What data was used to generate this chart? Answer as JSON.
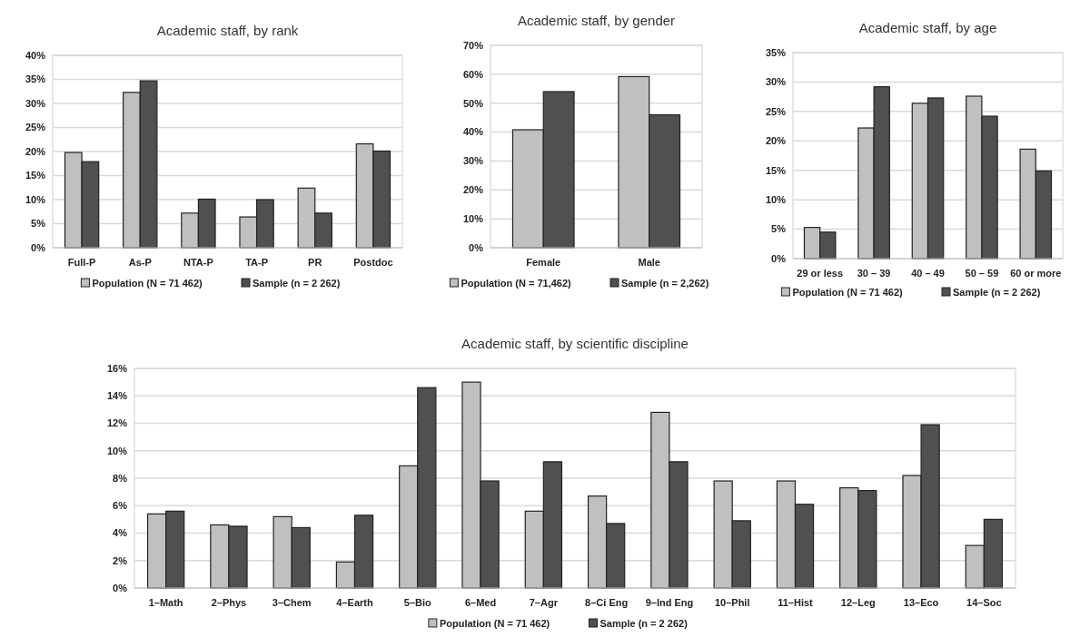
{
  "chart_data": [
    {
      "type": "bar",
      "title": "Academic staff, by rank",
      "categories": [
        "Full-P",
        "As-P",
        "NTA-P",
        "TA-P",
        "PR",
        "Postdoc"
      ],
      "series": [
        {
          "name": "Population (N = 71 462)",
          "color": "#c0c0c0",
          "values": [
            19.8,
            32.3,
            7.2,
            6.4,
            12.4,
            21.6
          ]
        },
        {
          "name": "Sample (n = 2 262)",
          "color": "#505050",
          "values": [
            17.9,
            34.7,
            10.1,
            10.0,
            7.2,
            20.1
          ]
        }
      ],
      "ylim": [
        0,
        40
      ],
      "yticks": [
        {
          "value": 0,
          "label": "0%"
        },
        {
          "value": 5,
          "label": "5%"
        },
        {
          "value": 10,
          "label": "10%"
        },
        {
          "value": 15,
          "label": "15%"
        },
        {
          "value": 20,
          "label": "20%"
        },
        {
          "value": 25,
          "label": "25%"
        },
        {
          "value": 30,
          "label": "30%"
        },
        {
          "value": 35,
          "label": "35%"
        },
        {
          "value": 40,
          "label": "40%"
        }
      ],
      "grid": "y",
      "legend": "bottom"
    },
    {
      "type": "bar",
      "title": "Academic staff, by gender",
      "categories": [
        "Female",
        "Male"
      ],
      "series": [
        {
          "name": "Population (N = 71,462)",
          "color": "#c0c0c0",
          "values": [
            40.8,
            59.2
          ]
        },
        {
          "name": "Sample (n = 2,262)",
          "color": "#505050",
          "values": [
            54.0,
            46.0
          ]
        }
      ],
      "ylim": [
        0,
        70
      ],
      "yticks": [
        {
          "value": 0,
          "label": "0%"
        },
        {
          "value": 10,
          "label": "10%"
        },
        {
          "value": 20,
          "label": "20%"
        },
        {
          "value": 30,
          "label": "30%"
        },
        {
          "value": 40,
          "label": "40%"
        },
        {
          "value": 50,
          "label": "50%"
        },
        {
          "value": 60,
          "label": "60%"
        },
        {
          "value": 70,
          "label": "70%"
        }
      ],
      "grid": "y",
      "legend": "bottom"
    },
    {
      "type": "bar",
      "title": "Academic staff, by age",
      "categories": [
        "29 or less",
        "30 – 39",
        "40 – 49",
        "50 – 59",
        "60 or more"
      ],
      "series": [
        {
          "name": "Population (N = 71 462)",
          "color": "#c0c0c0",
          "values": [
            5.3,
            22.2,
            26.4,
            27.6,
            18.6
          ]
        },
        {
          "name": "Sample (n = 2 262)",
          "color": "#505050",
          "values": [
            4.5,
            29.2,
            27.3,
            24.2,
            14.9
          ]
        }
      ],
      "ylim": [
        0,
        35
      ],
      "yticks": [
        {
          "value": 0,
          "label": "0%"
        },
        {
          "value": 5,
          "label": "5%"
        },
        {
          "value": 10,
          "label": "10%"
        },
        {
          "value": 15,
          "label": "15%"
        },
        {
          "value": 20,
          "label": "20%"
        },
        {
          "value": 25,
          "label": "25%"
        },
        {
          "value": 30,
          "label": "30%"
        },
        {
          "value": 35,
          "label": "35%"
        }
      ],
      "grid": "y",
      "legend": "bottom"
    },
    {
      "type": "bar",
      "title": "Academic staff, by scientific discipline",
      "categories": [
        "1–Math",
        "2–Phys",
        "3–Chem",
        "4–Earth",
        "5–Bio",
        "6–Med",
        "7–Agr",
        "8–Ci Eng",
        "9–Ind Eng",
        "10–Phil",
        "11–Hist",
        "12–Leg",
        "13–Eco",
        "14–Soc"
      ],
      "series": [
        {
          "name": "Population (N = 71 462)",
          "color": "#c0c0c0",
          "values": [
            5.4,
            4.6,
            5.2,
            1.9,
            8.9,
            15.0,
            5.6,
            6.7,
            12.8,
            7.8,
            7.8,
            7.3,
            8.2,
            3.1
          ]
        },
        {
          "name": "Sample (n = 2 262)",
          "color": "#505050",
          "values": [
            5.6,
            4.5,
            4.4,
            5.3,
            14.6,
            7.8,
            9.2,
            4.7,
            9.2,
            4.9,
            6.1,
            7.1,
            11.9,
            5.0
          ]
        }
      ],
      "ylim": [
        0,
        16
      ],
      "yticks": [
        {
          "value": 0,
          "label": "0%"
        },
        {
          "value": 2,
          "label": "2%"
        },
        {
          "value": 4,
          "label": "4%"
        },
        {
          "value": 6,
          "label": "6%"
        },
        {
          "value": 8,
          "label": "8%"
        },
        {
          "value": 10,
          "label": "10%"
        },
        {
          "value": 12,
          "label": "12%"
        },
        {
          "value": 14,
          "label": "14%"
        },
        {
          "value": 16,
          "label": "16%"
        }
      ],
      "grid": "y",
      "legend": "bottom"
    }
  ]
}
